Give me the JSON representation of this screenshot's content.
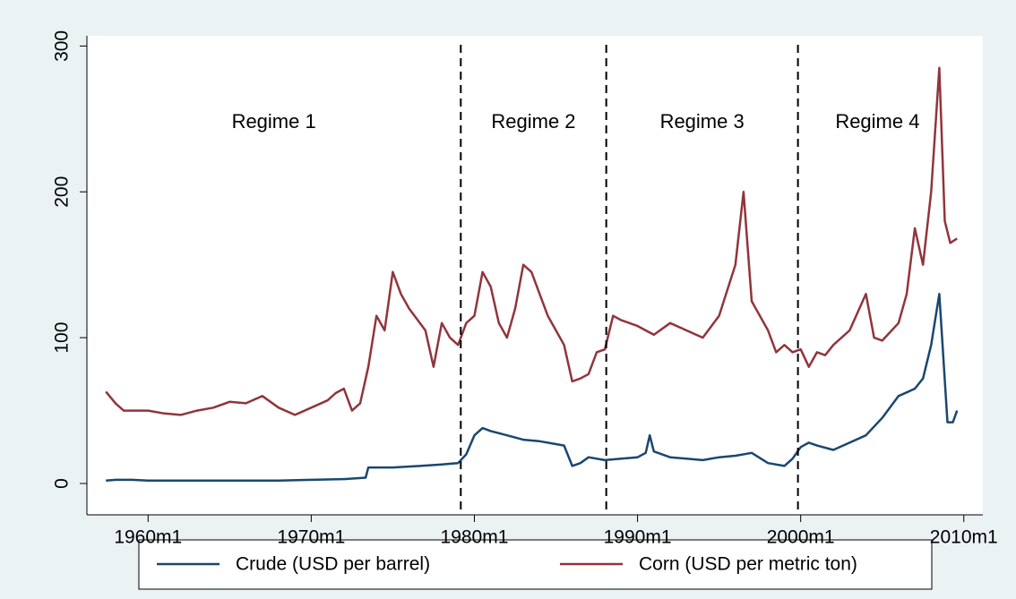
{
  "chart_data": {
    "type": "line",
    "series": [
      {
        "name": "Crude (USD per barrel)",
        "color": "#1a476f",
        "x": [
          -31,
          -24,
          -12,
          0,
          24,
          48,
          72,
          96,
          120,
          144,
          160,
          162,
          180,
          200,
          216,
          228,
          234,
          240,
          246,
          252,
          264,
          276,
          288,
          300,
          306,
          312,
          318,
          324,
          336,
          348,
          360,
          366,
          369,
          372,
          384,
          396,
          408,
          420,
          432,
          444,
          456,
          468,
          474,
          480,
          486,
          492,
          504,
          516,
          528,
          540,
          552,
          564,
          570,
          576,
          582,
          588,
          592,
          595
        ],
        "values": [
          2,
          2.5,
          2.5,
          2,
          2,
          2,
          2,
          2,
          2.5,
          3,
          4,
          11,
          11,
          12,
          13,
          14,
          20,
          33,
          38,
          36,
          33,
          30,
          29,
          27,
          26,
          12,
          14,
          18,
          16,
          17,
          18,
          21,
          33,
          22,
          18,
          17,
          16,
          18,
          19,
          21,
          14,
          12,
          17,
          25,
          28,
          26,
          23,
          28,
          33,
          45,
          60,
          65,
          72,
          95,
          130,
          42,
          42,
          50
        ]
      },
      {
        "name": "Corn (USD per metric ton)",
        "color": "#90353b",
        "x": [
          -31,
          -24,
          -18,
          -12,
          0,
          12,
          24,
          36,
          48,
          60,
          72,
          84,
          96,
          108,
          120,
          132,
          138,
          144,
          150,
          156,
          162,
          168,
          174,
          180,
          186,
          192,
          204,
          210,
          216,
          222,
          228,
          234,
          240,
          246,
          252,
          258,
          264,
          270,
          276,
          282,
          288,
          294,
          300,
          306,
          312,
          318,
          324,
          330,
          336,
          342,
          348,
          354,
          360,
          372,
          384,
          396,
          408,
          420,
          432,
          438,
          444,
          450,
          456,
          462,
          468,
          474,
          480,
          486,
          492,
          498,
          504,
          516,
          528,
          534,
          540,
          552,
          558,
          564,
          570,
          576,
          582,
          586,
          590,
          595
        ],
        "values": [
          63,
          55,
          50,
          50,
          50,
          48,
          47,
          50,
          52,
          56,
          55,
          60,
          52,
          47,
          52,
          57,
          62,
          65,
          50,
          55,
          80,
          115,
          105,
          145,
          130,
          120,
          105,
          80,
          110,
          100,
          95,
          110,
          115,
          145,
          135,
          110,
          100,
          120,
          150,
          145,
          130,
          115,
          105,
          95,
          70,
          72,
          75,
          90,
          92,
          115,
          112,
          110,
          108,
          102,
          110,
          105,
          100,
          115,
          150,
          200,
          125,
          115,
          105,
          90,
          95,
          90,
          92,
          80,
          90,
          88,
          95,
          105,
          130,
          100,
          98,
          110,
          130,
          175,
          150,
          200,
          285,
          180,
          165,
          168
        ]
      }
    ],
    "breaks": [
      230,
      337,
      478
    ],
    "annotations": [
      "Regime 1",
      "Regime 2",
      "Regime 3",
      "Regime 4"
    ],
    "xlim": [
      -45,
      614
    ],
    "xticks": [
      {
        "value": 0,
        "label": "1960m1"
      },
      {
        "value": 120,
        "label": "1970m1"
      },
      {
        "value": 240,
        "label": "1980m1"
      },
      {
        "value": 360,
        "label": "1990m1"
      },
      {
        "value": 480,
        "label": "2000m1"
      },
      {
        "value": 600,
        "label": "2010m1"
      }
    ],
    "ylim": [
      -21.5,
      307
    ],
    "yticks": [
      0,
      100,
      200,
      300
    ],
    "grid": false
  }
}
